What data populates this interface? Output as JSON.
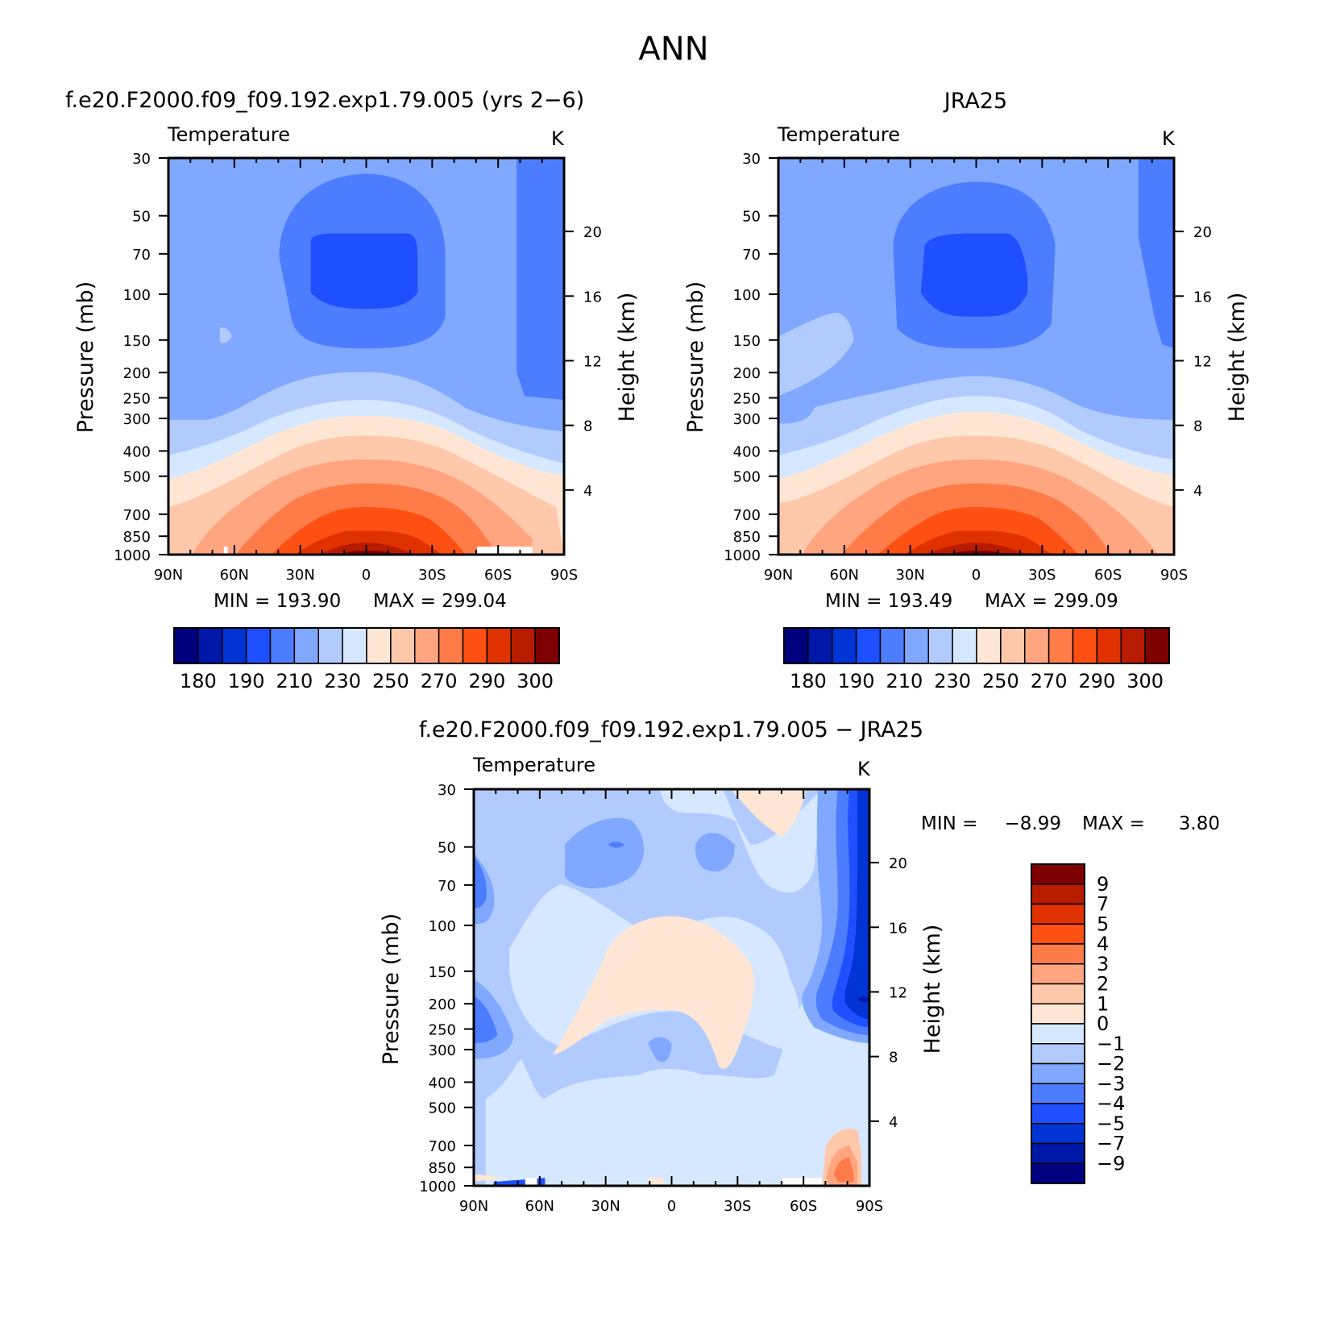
{
  "figure_title": "ANN",
  "chart_data": [
    {
      "type": "heatmap",
      "title": "f.e20.F2000.f09_f09.192.exp1.79.005 (yrs 2−6)",
      "field_label": "Temperature",
      "units": "K",
      "ylabel": "Pressure (mb)",
      "y2label": "Height (km)",
      "x_ticks": [
        "90N",
        "60N",
        "30N",
        "0",
        "30S",
        "60S",
        "90S"
      ],
      "y_ticks": [
        "30",
        "50",
        "70",
        "100",
        "150",
        "200",
        "250",
        "300",
        "400",
        "500",
        "700",
        "850",
        "1000"
      ],
      "y2_ticks": [
        "20",
        "16",
        "12",
        "8",
        "4"
      ],
      "min_text": "MIN = 193.90",
      "max_text": "MAX = 299.04",
      "min": 193.9,
      "max": 299.04,
      "colorbar_labels": [
        "180",
        "190",
        "210",
        "230",
        "250",
        "270",
        "290",
        "300"
      ],
      "colorbar_colors": [
        "#00007f",
        "#0018a8",
        "#0034d4",
        "#1e50ff",
        "#4c7dff",
        "#80a8ff",
        "#b2cbff",
        "#d6e8ff",
        "#ffe6d4",
        "#ffc8ab",
        "#ffa57f",
        "#ff7c48",
        "#ff5014",
        "#e03200",
        "#b81c00",
        "#7f0000"
      ],
      "colorbar_orientation": "horizontal",
      "grid": false
    },
    {
      "type": "heatmap",
      "title": "JRA25",
      "field_label": "Temperature",
      "units": "K",
      "ylabel": "Pressure (mb)",
      "y2label": "Height (km)",
      "x_ticks": [
        "90N",
        "60N",
        "30N",
        "0",
        "30S",
        "60S",
        "90S"
      ],
      "y_ticks": [
        "30",
        "50",
        "70",
        "100",
        "150",
        "200",
        "250",
        "300",
        "400",
        "500",
        "700",
        "850",
        "1000"
      ],
      "y2_ticks": [
        "20",
        "16",
        "12",
        "8",
        "4"
      ],
      "min_text": "MIN = 193.49",
      "max_text": "MAX = 299.09",
      "min": 193.49,
      "max": 299.09,
      "colorbar_labels": [
        "180",
        "190",
        "210",
        "230",
        "250",
        "270",
        "290",
        "300"
      ],
      "colorbar_colors": [
        "#00007f",
        "#0018a8",
        "#0034d4",
        "#1e50ff",
        "#4c7dff",
        "#80a8ff",
        "#b2cbff",
        "#d6e8ff",
        "#ffe6d4",
        "#ffc8ab",
        "#ffa57f",
        "#ff7c48",
        "#ff5014",
        "#e03200",
        "#b81c00",
        "#7f0000"
      ],
      "colorbar_orientation": "horizontal",
      "grid": false
    },
    {
      "type": "heatmap",
      "title": "f.e20.F2000.f09_f09.192.exp1.79.005 − JRA25",
      "field_label": "Temperature",
      "units": "K",
      "ylabel": "Pressure (mb)",
      "y2label": "Height (km)",
      "x_ticks": [
        "90N",
        "60N",
        "30N",
        "0",
        "30S",
        "60S",
        "90S"
      ],
      "y_ticks": [
        "30",
        "50",
        "70",
        "100",
        "150",
        "200",
        "250",
        "300",
        "400",
        "500",
        "700",
        "850",
        "1000"
      ],
      "y2_ticks": [
        "20",
        "16",
        "12",
        "8",
        "4"
      ],
      "min_label": "MIN =",
      "min_value": "−8.99",
      "max_label": "MAX =",
      "max_value": "3.80",
      "min": -8.99,
      "max": 3.8,
      "colorbar_labels": [
        "9",
        "7",
        "5",
        "4",
        "3",
        "2",
        "1",
        "0",
        "−1",
        "−2",
        "−3",
        "−4",
        "−5",
        "−7",
        "−9"
      ],
      "colorbar_colors": [
        "#7f0000",
        "#b81c00",
        "#e03200",
        "#ff5014",
        "#ff7c48",
        "#ffa57f",
        "#ffc8ab",
        "#ffe6d4",
        "#d6e8ff",
        "#b2cbff",
        "#80a8ff",
        "#4c7dff",
        "#1e50ff",
        "#0034d4",
        "#0018a8",
        "#00007f"
      ],
      "colorbar_orientation": "vertical",
      "grid": false
    }
  ]
}
